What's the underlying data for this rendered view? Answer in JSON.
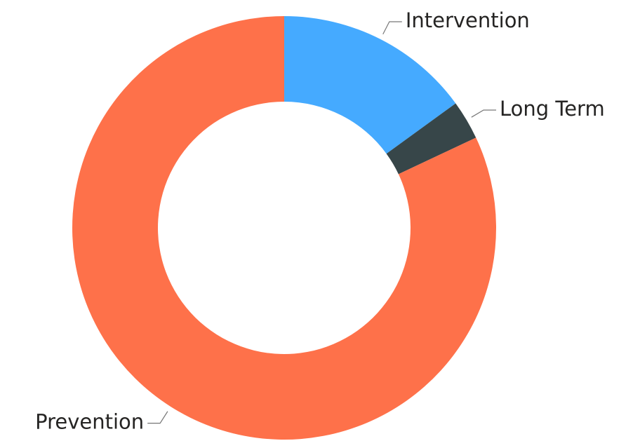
{
  "chart_data": {
    "type": "donut",
    "categories": [
      "Intervention",
      "Long Term",
      "Prevention"
    ],
    "values": [
      15,
      3,
      82
    ],
    "colors": [
      "#45aaff",
      "#374649",
      "#fe714a"
    ]
  }
}
